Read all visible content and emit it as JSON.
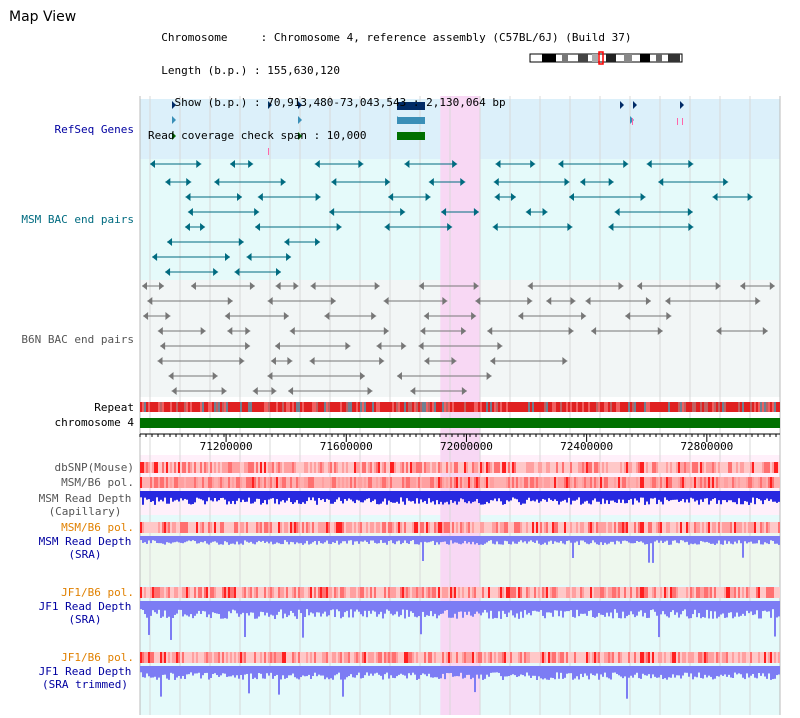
{
  "header": {
    "title": "Map View",
    "info_lines": [
      "  Chromosome     : Chromosome 4, reference assembly (C57BL/6J) (Build 37)",
      "  Length (b.p.) : 155,630,120",
      "    Show (b.p.) : 70,913,480-73,043,543 : 2,130,064 bp",
      "Read coverage check span : 10,000"
    ]
  },
  "tracks": {
    "refseq": {
      "label": "RefSeq Genes",
      "color": "#00008b"
    },
    "msm_bac": {
      "label": "MSM BAC end pairs",
      "color": "#006b80"
    },
    "b6n_bac": {
      "label": "B6N BAC end pairs",
      "color": "#555555"
    },
    "repeat": {
      "label": "Repeat"
    },
    "chromosome": {
      "label": "chromosome 4"
    },
    "dbsnp": {
      "label": "dbSNP(Mouse)"
    },
    "msm_b6_pol_1": {
      "label": "MSM/B6 pol."
    },
    "msm_read_depth_cap": {
      "line1": "MSM Read Depth",
      "line2": "(Capillary)"
    },
    "msm_b6_pol_2": {
      "label": "MSM/B6 pol."
    },
    "msm_read_depth_sra": {
      "line1": "MSM Read Depth",
      "line2": "(SRA)"
    },
    "jf1_b6_pol_1": {
      "label": "JF1/B6 pol."
    },
    "jf1_read_depth_sra": {
      "line1": "JF1 Read Depth",
      "line2": "(SRA)"
    },
    "jf1_b6_pol_2": {
      "label": "JF1/B6 pol."
    },
    "jf1_read_depth_trim": {
      "line1": "JF1 Read Depth",
      "line2": "(SRA trimmed)"
    }
  },
  "axis": {
    "start": 70913480,
    "end": 73043543,
    "ticks": [
      "71200000",
      "71600000",
      "72000000",
      "72400000",
      "72800000"
    ]
  },
  "highlight": {
    "start": 71913000,
    "end": 72047000
  },
  "colors": {
    "refseq_bg": "#dcf0fa",
    "track_bg": "#e5fafa",
    "b6n_bg": "#f2f6f6",
    "highlight": "#f8d8f4",
    "chromosome_bar": "#007000",
    "repeat_red": "#e02020",
    "depth_blue": "#2828e0",
    "depth_light_blue": "#7c7cf4",
    "label_blue": "#0000a0",
    "label_teal": "#006b80",
    "label_orange": "#e08000"
  }
}
